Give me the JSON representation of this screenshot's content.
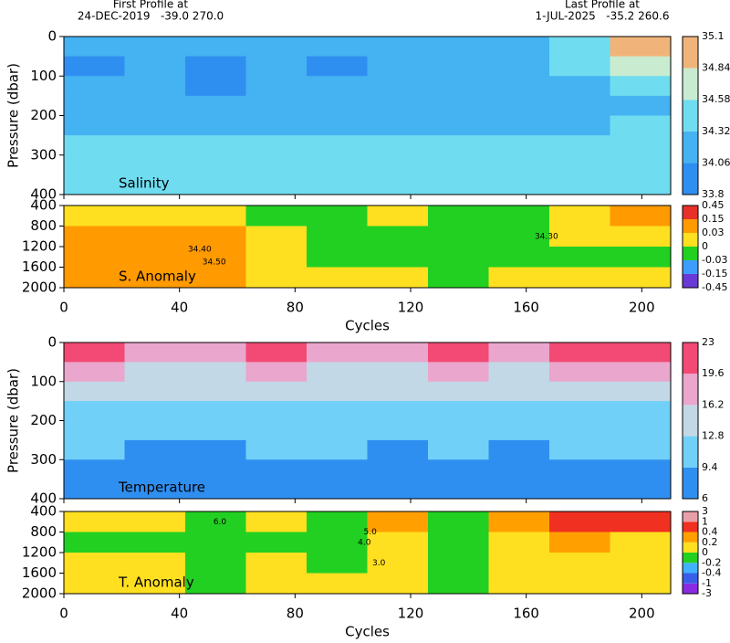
{
  "header": {
    "first_title": "First Profile at",
    "first_info": "24-DEC-2019   -39.0 270.0",
    "last_title": "Last Profile at",
    "last_info": "1-JUL-2025   -35.2 260.6"
  },
  "chart_data": [
    {
      "type": "heatmap",
      "title": "Salinity",
      "ylabel": "Pressure (dbar)",
      "bins": [
        0,
        21,
        42,
        63,
        84,
        105,
        126,
        147,
        168,
        189,
        210
      ],
      "xlim": [
        0,
        210
      ],
      "xticks": [
        0,
        40,
        80,
        120,
        160,
        200
      ],
      "pressure_bins": [
        0,
        50,
        100,
        150,
        200,
        250,
        300,
        350,
        400
      ],
      "ylim": [
        0,
        400
      ],
      "yticks": [
        0,
        100,
        200,
        300,
        400
      ],
      "y_inverted": true,
      "levels": [
        33.8,
        34.06,
        34.32,
        34.58,
        34.84,
        35.1
      ],
      "colors": [
        "#2f8ff0",
        "#45b2f2",
        "#6fdcf0",
        "#c9ecd0",
        "#f0b47a"
      ],
      "values": [
        [
          34.1,
          34.15,
          34.1,
          34.15,
          34.1,
          34.1,
          34.2,
          34.3,
          34.5,
          34.9
        ],
        [
          34.05,
          34.1,
          34.05,
          34.1,
          34.05,
          34.1,
          34.15,
          34.2,
          34.4,
          34.8
        ],
        [
          34.1,
          34.1,
          34.05,
          34.1,
          34.1,
          34.1,
          34.1,
          34.15,
          34.2,
          34.4
        ],
        [
          34.15,
          34.2,
          34.15,
          34.2,
          34.15,
          34.2,
          34.15,
          34.2,
          34.25,
          34.3
        ],
        [
          34.25,
          34.3,
          34.25,
          34.3,
          34.25,
          34.25,
          34.25,
          34.3,
          34.3,
          34.35
        ],
        [
          34.35,
          34.35,
          34.35,
          34.35,
          34.35,
          34.35,
          34.35,
          34.35,
          34.35,
          34.35
        ],
        [
          34.4,
          34.4,
          34.4,
          34.4,
          34.4,
          34.4,
          34.4,
          34.4,
          34.4,
          34.4
        ],
        [
          34.4,
          34.4,
          34.4,
          34.4,
          34.4,
          34.4,
          34.4,
          34.4,
          34.4,
          34.4
        ]
      ]
    },
    {
      "type": "heatmap",
      "title": "S. Anomaly",
      "xlabel": "Cycles",
      "bins": [
        0,
        21,
        42,
        63,
        84,
        105,
        126,
        147,
        168,
        189,
        210
      ],
      "xlim": [
        0,
        210
      ],
      "xticks": [
        0,
        40,
        80,
        120,
        160,
        200
      ],
      "pressure_bins": [
        400,
        800,
        1200,
        1600,
        2000
      ],
      "ylim": [
        400,
        2000
      ],
      "yticks": [
        400,
        800,
        1200,
        1600,
        2000
      ],
      "y_inverted": true,
      "levels": [
        -0.45,
        -0.15,
        -0.03,
        0,
        0.03,
        0.15,
        0.45
      ],
      "colors": [
        "#6a3ad6",
        "#3f9cff",
        "#22d022",
        "#ffe020",
        "#ff9a00",
        "#e8302a"
      ],
      "values": [
        [
          0.02,
          0.02,
          0.01,
          -0.01,
          -0.02,
          0.01,
          -0.02,
          -0.01,
          0.02,
          0.1
        ],
        [
          0.05,
          0.04,
          0.05,
          0.01,
          -0.01,
          -0.01,
          -0.01,
          -0.02,
          0.01,
          0.02
        ],
        [
          0.04,
          0.05,
          0.06,
          0.01,
          -0.01,
          -0.02,
          -0.02,
          -0.01,
          -0.02,
          -0.01
        ],
        [
          0.03,
          0.04,
          0.05,
          0.02,
          0.02,
          0.02,
          -0.01,
          0.01,
          0.02,
          0.02
        ]
      ],
      "annotations": [
        {
          "text": "34.40",
          "x": 47,
          "y": 1250
        },
        {
          "text": "34.50",
          "x": 52,
          "y": 1500
        },
        {
          "text": "34.30",
          "x": 167,
          "y": 1000
        }
      ]
    },
    {
      "type": "heatmap",
      "title": "Temperature",
      "ylabel": "Pressure (dbar)",
      "bins": [
        0,
        21,
        42,
        63,
        84,
        105,
        126,
        147,
        168,
        189,
        210
      ],
      "xlim": [
        0,
        210
      ],
      "xticks": [
        0,
        40,
        80,
        120,
        160,
        200
      ],
      "pressure_bins": [
        0,
        50,
        100,
        150,
        200,
        250,
        300,
        350,
        400
      ],
      "ylim": [
        0,
        400
      ],
      "yticks": [
        0,
        100,
        200,
        300,
        400
      ],
      "y_inverted": true,
      "levels": [
        6,
        9.4,
        12.8,
        16.2,
        19.6,
        23
      ],
      "colors": [
        "#2f8ff0",
        "#70d0f8",
        "#c2d8e6",
        "#eaa6cc",
        "#f24a74"
      ],
      "values": [
        [
          20,
          19,
          18,
          21,
          19,
          18,
          21,
          18,
          20,
          21
        ],
        [
          17,
          16,
          15,
          17,
          16,
          16,
          17,
          15,
          17,
          17
        ],
        [
          14,
          13,
          13,
          14,
          14,
          13,
          14,
          13,
          14,
          14
        ],
        [
          12,
          11.5,
          11,
          12,
          12,
          11,
          12,
          11,
          12,
          12
        ],
        [
          11,
          10,
          10,
          11,
          10.5,
          10,
          11,
          10,
          11,
          11
        ],
        [
          10,
          9,
          9,
          9.5,
          9.5,
          9,
          9.5,
          9,
          10,
          10
        ],
        [
          9,
          8.5,
          8,
          8.5,
          8.5,
          8.5,
          9,
          8.5,
          9,
          9
        ],
        [
          8.5,
          8,
          8,
          8,
          8,
          8,
          8.5,
          8,
          8.5,
          8.5
        ]
      ]
    },
    {
      "type": "heatmap",
      "title": "T. Anomaly",
      "xlabel": "Cycles",
      "bins": [
        0,
        21,
        42,
        63,
        84,
        105,
        126,
        147,
        168,
        189,
        210
      ],
      "xlim": [
        0,
        210
      ],
      "xticks": [
        0,
        40,
        80,
        120,
        160,
        200
      ],
      "pressure_bins": [
        400,
        800,
        1200,
        1600,
        2000
      ],
      "ylim": [
        400,
        2000
      ],
      "yticks": [
        400,
        800,
        1200,
        1600,
        2000
      ],
      "y_inverted": true,
      "levels": [
        -3,
        -1,
        -0.4,
        -0.2,
        0,
        0.2,
        0.4,
        1,
        3
      ],
      "colors": [
        "#8a2be2",
        "#3a5ee8",
        "#40b0ff",
        "#22d022",
        "#ffe020",
        "#ffa000",
        "#f03020",
        "#e8a0a8"
      ],
      "values": [
        [
          0.1,
          0.1,
          -0.1,
          0.1,
          -0.1,
          0.2,
          -0.1,
          0.3,
          0.5,
          0.5
        ],
        [
          -0.1,
          -0.1,
          -0.1,
          -0.1,
          -0.1,
          0.1,
          -0.1,
          0.1,
          0.2,
          0.1
        ],
        [
          0.05,
          0.1,
          -0.1,
          0.1,
          -0.1,
          0.1,
          -0.1,
          0.1,
          0.1,
          0.1
        ],
        [
          0.1,
          0.1,
          -0.1,
          0.1,
          0.1,
          0.1,
          -0.1,
          0.1,
          0.1,
          0.1
        ]
      ],
      "annotations": [
        {
          "text": "6.0",
          "x": 54,
          "y": 600
        },
        {
          "text": "5.0",
          "x": 106,
          "y": 800
        },
        {
          "text": "4.0",
          "x": 104,
          "y": 1000
        },
        {
          "text": "3.0",
          "x": 109,
          "y": 1400
        }
      ]
    }
  ]
}
